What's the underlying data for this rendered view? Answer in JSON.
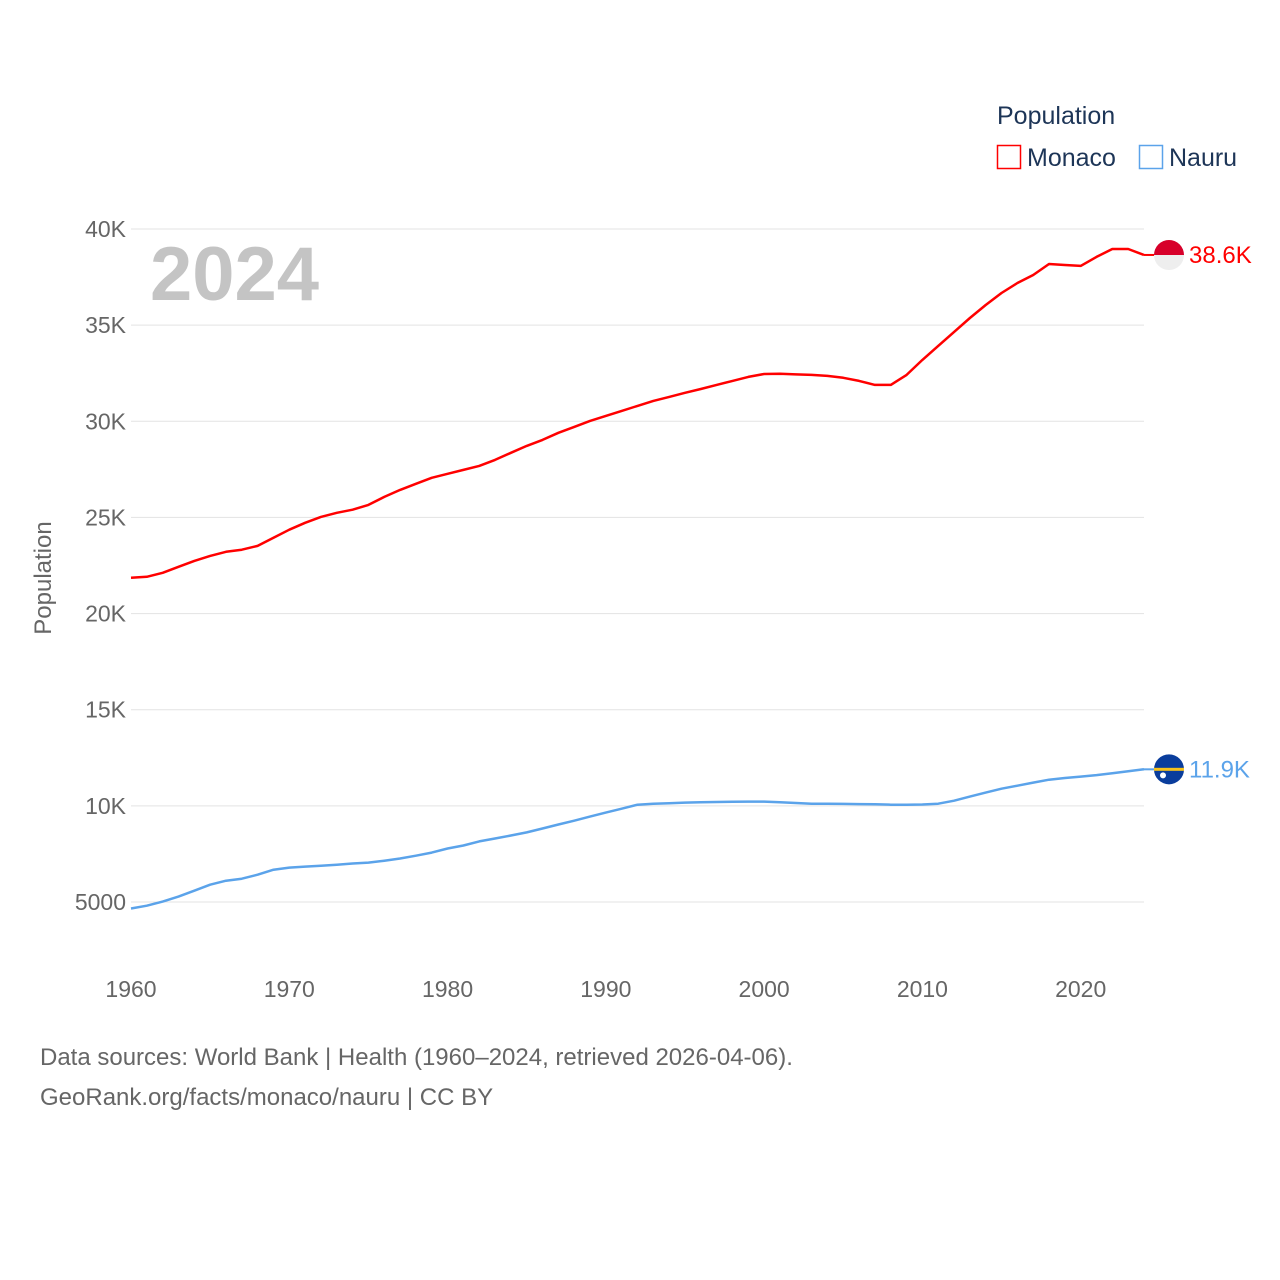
{
  "chart_data": {
    "type": "line",
    "title": "",
    "watermark_year": "2024",
    "xlabel": "",
    "ylabel": "Population",
    "xlim": [
      1960,
      2024
    ],
    "ylim": [
      5000,
      40000
    ],
    "x_ticks": [
      "1960",
      "1970",
      "1980",
      "1990",
      "2000",
      "2010",
      "2020"
    ],
    "y_ticks": [
      {
        "v": 5000,
        "label": "5000"
      },
      {
        "v": 10000,
        "label": "10K"
      },
      {
        "v": 15000,
        "label": "15K"
      },
      {
        "v": 20000,
        "label": "20K"
      },
      {
        "v": 25000,
        "label": "25K"
      },
      {
        "v": 30000,
        "label": "30K"
      },
      {
        "v": 35000,
        "label": "35K"
      },
      {
        "v": 40000,
        "label": "40K"
      }
    ],
    "grid": true,
    "legend": {
      "title": "Population",
      "placement": "top-right"
    },
    "x": [
      1960,
      1961,
      1962,
      1963,
      1964,
      1965,
      1966,
      1967,
      1968,
      1969,
      1970,
      1971,
      1972,
      1973,
      1974,
      1975,
      1976,
      1977,
      1978,
      1979,
      1980,
      1981,
      1982,
      1983,
      1984,
      1985,
      1986,
      1987,
      1988,
      1989,
      1990,
      1991,
      1992,
      1993,
      1994,
      1995,
      1996,
      1997,
      1998,
      1999,
      2000,
      2001,
      2002,
      2003,
      2004,
      2005,
      2006,
      2007,
      2008,
      2009,
      2010,
      2011,
      2012,
      2013,
      2014,
      2015,
      2016,
      2017,
      2018,
      2019,
      2020,
      2021,
      2022,
      2023,
      2024
    ],
    "series": [
      {
        "name": "Monaco",
        "color": "#ff0000",
        "end_label": "38.6K",
        "values": [
          21860,
          21910,
          22120,
          22430,
          22740,
          23000,
          23210,
          23320,
          23520,
          23940,
          24360,
          24720,
          25030,
          25240,
          25400,
          25650,
          26070,
          26430,
          26750,
          27060,
          27270,
          27470,
          27680,
          27990,
          28360,
          28720,
          29030,
          29400,
          29710,
          30020,
          30280,
          30540,
          30800,
          31060,
          31270,
          31480,
          31680,
          31890,
          32100,
          32310,
          32460,
          32470,
          32440,
          32410,
          32360,
          32260,
          32100,
          31890,
          31890,
          32410,
          33190,
          33920,
          34650,
          35370,
          36050,
          36670,
          37190,
          37610,
          38180,
          38130,
          38080,
          38550,
          38960,
          38960,
          38650
        ]
      },
      {
        "name": "Nauru",
        "color": "#5ba3ea",
        "end_label": "11.9K",
        "values": [
          4660,
          4810,
          5020,
          5280,
          5590,
          5900,
          6110,
          6210,
          6420,
          6680,
          6790,
          6840,
          6890,
          6940,
          7000,
          7050,
          7150,
          7260,
          7410,
          7570,
          7780,
          7940,
          8150,
          8300,
          8460,
          8620,
          8820,
          9030,
          9230,
          9440,
          9650,
          9850,
          10060,
          10110,
          10140,
          10170,
          10190,
          10200,
          10210,
          10220,
          10220,
          10190,
          10150,
          10110,
          10110,
          10100,
          10090,
          10080,
          10060,
          10060,
          10070,
          10110,
          10270,
          10480,
          10690,
          10890,
          11050,
          11210,
          11360,
          11450,
          11520,
          11600,
          11700,
          11800,
          11900
        ]
      }
    ]
  },
  "footer": {
    "line1": "Data sources: World Bank | Health (1960–2024, retrieved 2026-04-06).",
    "line2": "GeoRank.org/facts/monaco/nauru | CC BY"
  }
}
